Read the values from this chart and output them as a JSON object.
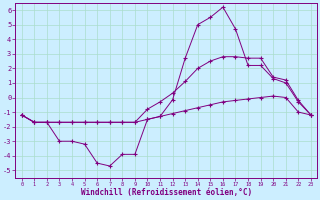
{
  "xlabel": "Windchill (Refroidissement éolien,°C)",
  "x": [
    0,
    1,
    2,
    3,
    4,
    5,
    6,
    7,
    8,
    9,
    10,
    11,
    12,
    13,
    14,
    15,
    16,
    17,
    18,
    19,
    20,
    21,
    22,
    23
  ],
  "line_bottom": [
    -1.2,
    -1.7,
    -1.7,
    -1.7,
    -1.7,
    -1.7,
    -1.7,
    -1.7,
    -1.7,
    -1.7,
    -1.5,
    -1.3,
    -1.1,
    -0.9,
    -0.7,
    -0.5,
    -0.3,
    -0.2,
    -0.1,
    0.0,
    0.1,
    0.0,
    -1.0,
    -1.2
  ],
  "line_mid": [
    -1.2,
    -1.7,
    -1.7,
    -1.7,
    -1.7,
    -1.7,
    -1.7,
    -1.7,
    -1.7,
    -1.7,
    -0.8,
    -0.3,
    0.3,
    1.1,
    2.0,
    2.5,
    2.8,
    2.8,
    2.7,
    2.7,
    1.4,
    1.2,
    -0.2,
    -1.2
  ],
  "line_spike": [
    -1.2,
    -1.7,
    -1.7,
    -3.0,
    -3.0,
    -3.2,
    -4.5,
    -4.7,
    -3.9,
    -3.9,
    -1.5,
    -1.3,
    -0.15,
    2.7,
    5.0,
    5.5,
    6.2,
    4.7,
    2.2,
    2.2,
    1.3,
    1.0,
    -0.3,
    -1.2
  ],
  "line_color": "#800080",
  "bg_color": "#cceeff",
  "grid_color": "#aaddcc",
  "ylim": [
    -5.5,
    6.5
  ],
  "xlim": [
    -0.5,
    23.5
  ],
  "yticks": [
    -5,
    -4,
    -3,
    -2,
    -1,
    0,
    1,
    2,
    3,
    4,
    5,
    6
  ],
  "xticks": [
    0,
    1,
    2,
    3,
    4,
    5,
    6,
    7,
    8,
    9,
    10,
    11,
    12,
    13,
    14,
    15,
    16,
    17,
    18,
    19,
    20,
    21,
    22,
    23
  ]
}
